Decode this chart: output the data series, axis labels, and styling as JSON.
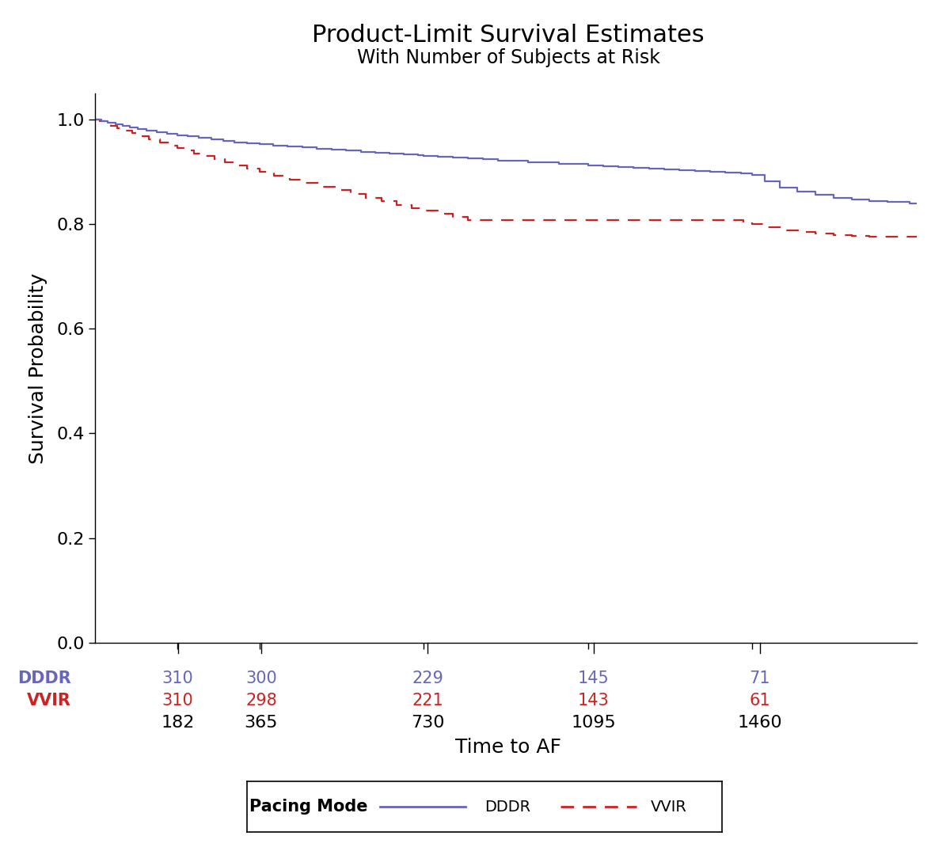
{
  "title": "Product-Limit Survival Estimates",
  "subtitle": "With Number of Subjects at Risk",
  "xlabel": "Time to AF",
  "ylabel": "Survival Probability",
  "xlim": [
    0,
    1825
  ],
  "ylim": [
    0.0,
    1.05
  ],
  "yticks": [
    0.0,
    0.2,
    0.4,
    0.6,
    0.8,
    1.0
  ],
  "xticks": [
    182,
    365,
    730,
    1095,
    1460
  ],
  "title_fontsize": 22,
  "subtitle_fontsize": 17,
  "axis_label_fontsize": 18,
  "tick_fontsize": 16,
  "atrisk_fontsize": 15,
  "dddr_color": "#6666BB",
  "vvir_color": "#CC2222",
  "at_risk_x": [
    182,
    365,
    730,
    1095,
    1460
  ],
  "dddr_at_risk": [
    310,
    300,
    229,
    145,
    71
  ],
  "vvir_at_risk": [
    310,
    298,
    221,
    143,
    61
  ],
  "legend_title": "Pacing Mode",
  "background_color": "#ffffff"
}
